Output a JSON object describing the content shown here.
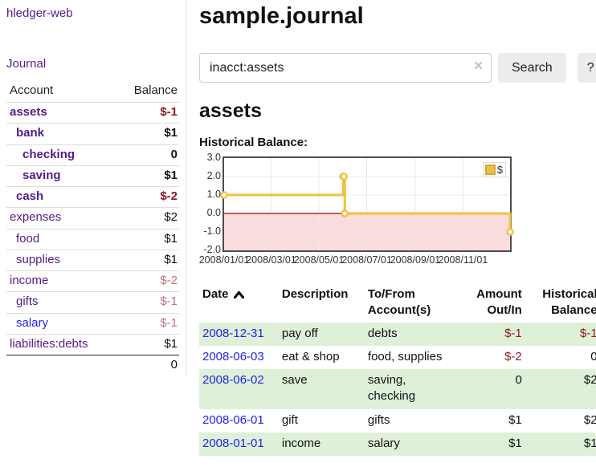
{
  "app": {
    "brand": "hledger-web",
    "nav": {
      "journal": "Journal"
    }
  },
  "colors": {
    "link_visited": "#551A8B",
    "link_unvisited": "#2222EE",
    "negative_strong": "#8d1a26",
    "negative_muted": "#c0737d",
    "row_stripe_green": "#dff0d8",
    "chart_line_gold": "#edc240"
  },
  "sidebar": {
    "columns": {
      "account": "Account",
      "balance": "Balance"
    },
    "accounts": [
      {
        "name": "assets",
        "indent": 0,
        "bold": true,
        "balance": "$-1",
        "balance_tone": "negative-strong",
        "link_tone": "visited"
      },
      {
        "name": "bank",
        "indent": 1,
        "bold": true,
        "balance": "$1",
        "balance_tone": "normal",
        "link_tone": "visited"
      },
      {
        "name": "checking",
        "indent": 2,
        "bold": true,
        "balance": "0",
        "balance_tone": "normal",
        "link_tone": "visited"
      },
      {
        "name": "saving",
        "indent": 2,
        "bold": true,
        "balance": "$1",
        "balance_tone": "normal",
        "link_tone": "visited"
      },
      {
        "name": "cash",
        "indent": 1,
        "bold": true,
        "balance": "$-2",
        "balance_tone": "negative-strong",
        "link_tone": "visited"
      },
      {
        "name": "expenses",
        "indent": 0,
        "bold": false,
        "balance": "$2",
        "balance_tone": "normal",
        "link_tone": "visited"
      },
      {
        "name": "food",
        "indent": 1,
        "bold": false,
        "balance": "$1",
        "balance_tone": "normal",
        "link_tone": "visited"
      },
      {
        "name": "supplies",
        "indent": 1,
        "bold": false,
        "balance": "$1",
        "balance_tone": "normal",
        "link_tone": "visited"
      },
      {
        "name": "income",
        "indent": 0,
        "bold": false,
        "balance": "$-2",
        "balance_tone": "negative-muted",
        "link_tone": "visited"
      },
      {
        "name": "gifts",
        "indent": 1,
        "bold": false,
        "balance": "$-1",
        "balance_tone": "negative-muted",
        "link_tone": "visited"
      },
      {
        "name": "salary",
        "indent": 1,
        "bold": false,
        "balance": "$-1",
        "balance_tone": "negative-muted",
        "link_tone": "new"
      },
      {
        "name": "liabilities:debts",
        "indent": 0,
        "bold": false,
        "balance": "$1",
        "balance_tone": "normal",
        "link_tone": "visited"
      }
    ],
    "total": "0"
  },
  "main": {
    "title": "sample.journal",
    "search": {
      "value": "inacct:assets",
      "clear": "✕",
      "button": "Search",
      "help": "?"
    },
    "account_heading": "assets",
    "chart_label": "Historical Balance:"
  },
  "register": {
    "headers": {
      "date": "Date",
      "description": "Description",
      "accounts": "To/From Account(s)",
      "amount": "Amount Out/In",
      "balance": "Historical Balance"
    },
    "rows": [
      {
        "date": "2008-12-31",
        "description": "pay off",
        "accounts": "debts",
        "amount": "$-1",
        "amount_negative": true,
        "balance": "$-1",
        "balance_negative": true
      },
      {
        "date": "2008-06-03",
        "description": "eat & shop",
        "accounts": "food, supplies",
        "amount": "$-2",
        "amount_negative": true,
        "balance": "0",
        "balance_negative": false
      },
      {
        "date": "2008-06-02",
        "description": "save",
        "accounts": "saving, checking",
        "amount": "0",
        "amount_negative": false,
        "balance": "$2",
        "balance_negative": false
      },
      {
        "date": "2008-06-01",
        "description": "gift",
        "accounts": "gifts",
        "amount": "$1",
        "amount_negative": false,
        "balance": "$2",
        "balance_negative": false
      },
      {
        "date": "2008-01-01",
        "description": "income",
        "accounts": "salary",
        "amount": "$1",
        "amount_negative": false,
        "balance": "$1",
        "balance_negative": false
      }
    ]
  },
  "chart_data": {
    "type": "line",
    "title": "Historical Balance:",
    "legend": "$",
    "legend_position": "top-right",
    "grid": true,
    "x_range": [
      "2008-01-01",
      "2008-12-31"
    ],
    "ylim": [
      -2,
      3
    ],
    "y_ticks": [
      3.0,
      2.0,
      1.0,
      0.0,
      -1.0,
      -2.0
    ],
    "x_ticks": [
      "2008/01/01",
      "2008/03/01",
      "2008/05/01",
      "2008/07/01",
      "2008/09/01",
      "2008/11/01"
    ],
    "series": [
      {
        "name": "$",
        "color": "#edc240",
        "step": true,
        "marker": "circle",
        "points": [
          [
            "2008-01-01",
            1
          ],
          [
            "2008-06-01",
            2
          ],
          [
            "2008-06-02",
            2
          ],
          [
            "2008-06-03",
            0
          ],
          [
            "2008-12-31",
            -1
          ]
        ]
      }
    ],
    "negative_region": {
      "from": 0,
      "to": -2,
      "color": "#fbdcdc"
    },
    "zero_line_color": "#a40000",
    "gridline_color": "#e8e8e8"
  }
}
